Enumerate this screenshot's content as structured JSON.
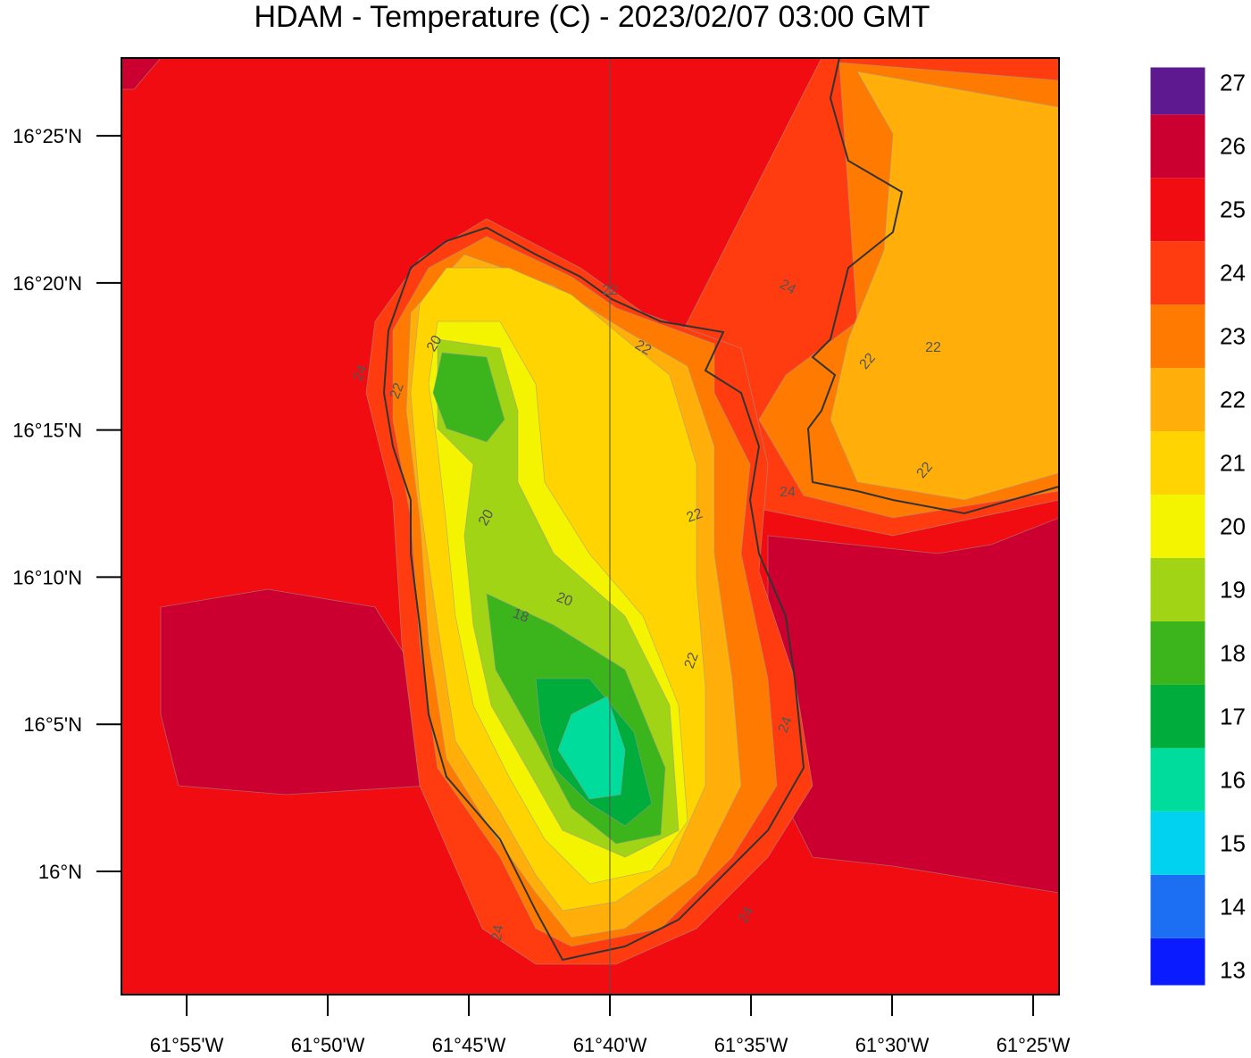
{
  "map": {
    "title": "HDAM - Temperature (C)  -  2023/02/07  03:00 GMT",
    "lonlim": [
      -61.9552,
      -61.4014
    ],
    "latlim": [
      15.9302,
      16.4607
    ],
    "lon_ticks": [
      {
        "value": -61.91667,
        "label": "61°55'W"
      },
      {
        "value": -61.83333,
        "label": "61°50'W"
      },
      {
        "value": -61.75,
        "label": "61°45'W"
      },
      {
        "value": -61.66667,
        "label": "61°40'W"
      },
      {
        "value": -61.58333,
        "label": "61°35'W"
      },
      {
        "value": -61.5,
        "label": "61°30'W"
      },
      {
        "value": -61.41667,
        "label": "61°25'W"
      }
    ],
    "lat_ticks": [
      {
        "value": 16.41667,
        "label": "16°25'N"
      },
      {
        "value": 16.33333,
        "label": "16°20'N"
      },
      {
        "value": 16.25,
        "label": "16°15'N"
      },
      {
        "value": 16.16667,
        "label": "16°10'N"
      },
      {
        "value": 16.08333,
        "label": "16°5'N"
      },
      {
        "value": 16.0,
        "label": "16°N"
      }
    ],
    "colorbar": {
      "lim": [
        12.75,
        27.25
      ],
      "ticks": [
        13,
        14,
        15,
        16,
        17,
        18,
        19,
        20,
        21,
        22,
        23,
        24,
        25,
        26,
        27
      ],
      "colors": [
        "#0a1cff",
        "#1c6ef2",
        "#00d2f0",
        "#00dc9c",
        "#00ad3c",
        "#3cb41c",
        "#a0d414",
        "#f4f400",
        "#ffd400",
        "#ffae0a",
        "#ff7a00",
        "#ff3c10",
        "#f00c10",
        "#cc0030",
        "#5e1890"
      ]
    },
    "contour_labels": [
      20,
      22,
      24,
      22,
      20,
      20,
      18,
      22,
      22,
      24,
      22,
      22,
      22,
      24,
      24,
      24,
      24,
      22
    ]
  }
}
